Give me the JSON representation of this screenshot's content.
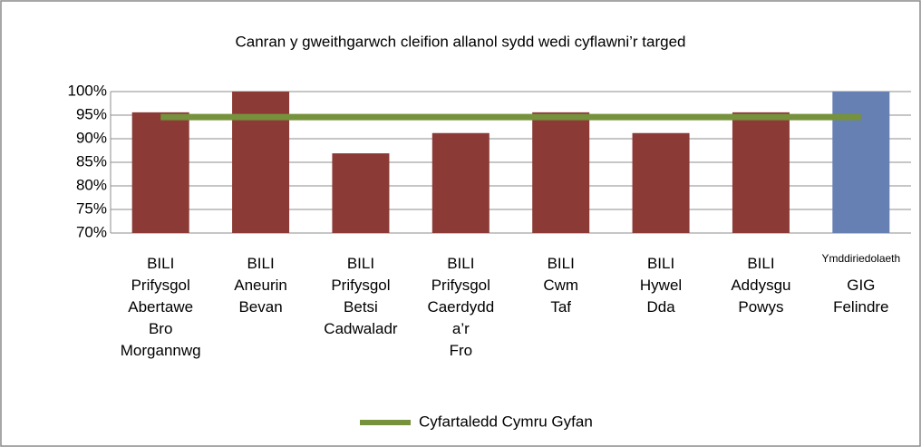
{
  "chart_data": {
    "type": "bar",
    "title": "Canran y gweithgarwch cleifion allanol sydd wedi cyflawni’r targed",
    "categories": [
      "BILI Prifysgol Abertawe Bro Morgannwg",
      "BILI Aneurin Bevan",
      "BILI Prifysgol Betsi Cadwaladr",
      "BILI Prifysgol Caerdydd a’r Fro",
      "BILI Cwm Taf",
      "BILI Hywel Dda",
      "BILI Addysgu Powys",
      "Ymddiriedolaeth GIG Felindre"
    ],
    "series": [
      {
        "type": "bar",
        "colors": [
          "#8b3a36",
          "#8b3a36",
          "#8b3a36",
          "#8b3a36",
          "#8b3a36",
          "#8b3a36",
          "#8b3a36",
          "#6680b3"
        ],
        "values": [
          95.6,
          100,
          86.9,
          91.2,
          95.6,
          91.2,
          95.6,
          100
        ]
      },
      {
        "type": "line",
        "name": "Cyfartaledd Cymru Gyfan",
        "color": "#76923c",
        "values": [
          94.6,
          94.6,
          94.6,
          94.6,
          94.6,
          94.6,
          94.6,
          94.6
        ]
      }
    ],
    "ylim": [
      70,
      100
    ],
    "yticks": [
      {
        "value": 70,
        "label": "70%"
      },
      {
        "value": 75,
        "label": "75%"
      },
      {
        "value": 80,
        "label": "80%"
      },
      {
        "value": 85,
        "label": "85%"
      },
      {
        "value": 90,
        "label": "90%"
      },
      {
        "value": 95,
        "label": "95%"
      },
      {
        "value": 100,
        "label": "100%"
      }
    ],
    "grid": true,
    "legend": "bottom"
  }
}
